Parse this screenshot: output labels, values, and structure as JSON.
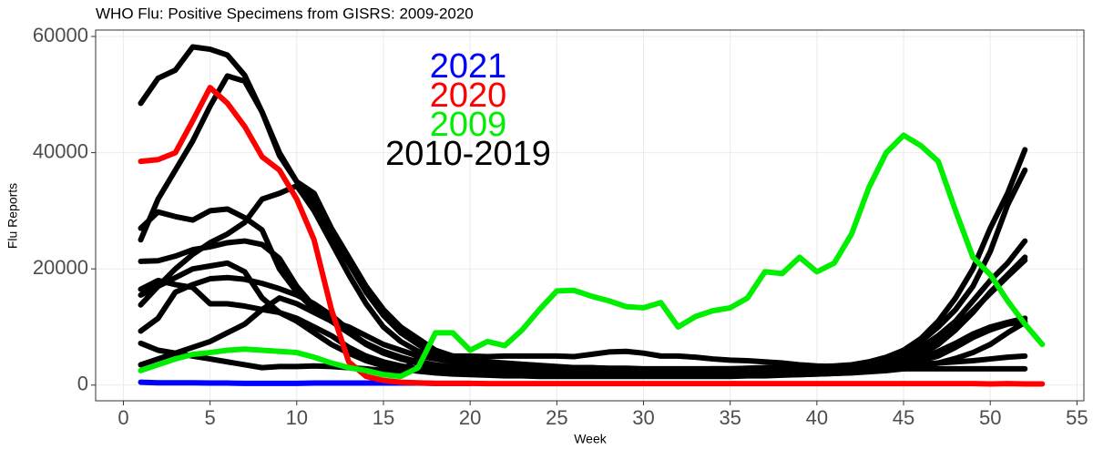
{
  "chart_data": {
    "type": "line",
    "title": "WHO Flu: Positive Specimens from GISRS: 2009-2020",
    "xlabel": "Week",
    "ylabel": "Flu Reports",
    "xlim": [
      -1.6,
      55.4
    ],
    "ylim": [
      -2700,
      61100
    ],
    "xticks": [
      0,
      5,
      10,
      15,
      20,
      25,
      30,
      35,
      40,
      45,
      50,
      55
    ],
    "yticks": [
      0,
      20000,
      40000,
      60000
    ],
    "grid": true,
    "series": [
      {
        "name": "2021",
        "color": "#0000ff",
        "x": [
          1,
          2,
          3,
          4,
          5,
          6,
          7,
          8,
          9,
          10,
          11,
          12,
          13,
          14,
          15,
          16,
          17,
          18,
          19,
          20
        ],
        "values": [
          500,
          400,
          400,
          400,
          350,
          350,
          300,
          300,
          300,
          300,
          350,
          350,
          350,
          350,
          350,
          350,
          350,
          300,
          300,
          300
        ]
      },
      {
        "name": "2020",
        "color": "#ff0000",
        "x": [
          1,
          2,
          3,
          4,
          5,
          6,
          7,
          8,
          9,
          10,
          11,
          12,
          13,
          14,
          15,
          16,
          17,
          18,
          19,
          20,
          21,
          22,
          23,
          24,
          25,
          26,
          27,
          28,
          29,
          30,
          31,
          32,
          33,
          34,
          35,
          36,
          37,
          38,
          39,
          40,
          41,
          42,
          43,
          44,
          45,
          46,
          47,
          48,
          49,
          50,
          51,
          52,
          53
        ],
        "values": [
          38500,
          38800,
          40000,
          45500,
          51200,
          48500,
          44500,
          39300,
          37000,
          32000,
          25000,
          13000,
          4000,
          1500,
          800,
          500,
          400,
          300,
          300,
          300,
          250,
          250,
          250,
          250,
          250,
          250,
          250,
          250,
          250,
          250,
          250,
          250,
          250,
          250,
          250,
          250,
          250,
          250,
          250,
          250,
          250,
          250,
          250,
          250,
          250,
          250,
          250,
          250,
          250,
          200,
          250,
          200,
          200
        ]
      },
      {
        "name": "2009",
        "color": "#00ee00",
        "x": [
          1,
          2,
          3,
          4,
          5,
          6,
          7,
          8,
          9,
          10,
          11,
          12,
          13,
          14,
          15,
          16,
          17,
          18,
          19,
          20,
          21,
          22,
          23,
          24,
          25,
          26,
          27,
          28,
          29,
          30,
          31,
          32,
          33,
          34,
          35,
          36,
          37,
          38,
          39,
          40,
          41,
          42,
          43,
          44,
          45,
          46,
          47,
          48,
          49,
          50,
          51,
          52,
          53
        ],
        "values": [
          2500,
          3500,
          4500,
          5300,
          5600,
          6000,
          6200,
          6000,
          5800,
          5600,
          4800,
          3800,
          3000,
          2500,
          1800,
          1500,
          3000,
          9000,
          9000,
          6000,
          7500,
          6800,
          9500,
          13000,
          16200,
          16300,
          15300,
          14500,
          13500,
          13300,
          14200,
          10000,
          11800,
          12800,
          13300,
          15000,
          19500,
          19200,
          22000,
          19500,
          21000,
          26000,
          34000,
          40000,
          43000,
          41200,
          38500,
          30000,
          22000,
          19000,
          14500,
          10500,
          7000
        ]
      },
      {
        "name": "2010-2019",
        "color": "#000000",
        "x": [
          1,
          2,
          3,
          4,
          5,
          6,
          7,
          8,
          9,
          10,
          11,
          12,
          13,
          14,
          15,
          16,
          17,
          18,
          19,
          20,
          21,
          22,
          23,
          24,
          25,
          26,
          27,
          28,
          29,
          30,
          31,
          32,
          33,
          34,
          35,
          36,
          37,
          38,
          39,
          40,
          41,
          42,
          43,
          44,
          45,
          46,
          47,
          48,
          49,
          50,
          51,
          52
        ],
        "lines": [
          [
            48500,
            52800,
            54200,
            58200,
            57800,
            56800,
            53300,
            47000,
            39500,
            35000,
            31500,
            26000,
            21000,
            16000,
            12000,
            9000,
            7000,
            5000,
            4000,
            3500,
            3200,
            3000,
            2800,
            2600,
            2500,
            2400,
            2300,
            2200,
            2100,
            2000,
            2000,
            2000,
            2000,
            2000,
            2100,
            2100,
            2200,
            2300,
            2400,
            2500,
            2700,
            3000,
            3500,
            4500,
            6000,
            8000,
            11000,
            15000,
            20000,
            27000,
            33000,
            40500
          ],
          [
            25000,
            32000,
            37000,
            42000,
            48000,
            53200,
            52300,
            47000,
            40000,
            35000,
            33000,
            27000,
            22000,
            17000,
            13000,
            10000,
            8000,
            6000,
            5000,
            4500,
            4000,
            3800,
            3600,
            3400,
            3200,
            3000,
            3000,
            2800,
            2800,
            2700,
            2700,
            2700,
            2700,
            2800,
            2800,
            2900,
            3000,
            3000,
            3100,
            3200,
            3300,
            3500,
            4000,
            4800,
            6000,
            7500,
            10000,
            13000,
            17000,
            23000,
            31000,
            37000
          ],
          [
            13800,
            17000,
            20000,
            22500,
            24500,
            26000,
            28000,
            32000,
            33000,
            34300,
            30000,
            24500,
            19000,
            14000,
            10000,
            7500,
            5800,
            4800,
            4300,
            4000,
            3800,
            3600,
            3400,
            3200,
            3000,
            2900,
            2800,
            2700,
            2600,
            2500,
            2500,
            2400,
            2400,
            2400,
            2400,
            2500,
            2500,
            2600,
            2700,
            2800,
            3000,
            3200,
            3500,
            4000,
            5000,
            6500,
            8500,
            11000,
            14500,
            18000,
            21000,
            24800
          ],
          [
            27000,
            29800,
            29000,
            28400,
            30000,
            30300,
            28800,
            26700,
            20000,
            16000,
            13000,
            11000,
            9000,
            7000,
            5500,
            4500,
            3800,
            3200,
            2800,
            2600,
            2400,
            2300,
            2200,
            2100,
            2000,
            2000,
            1900,
            1900,
            1800,
            1800,
            1800,
            1800,
            1800,
            1800,
            1800,
            1900,
            1900,
            2000,
            2000,
            2100,
            2200,
            2400,
            2700,
            3200,
            4000,
            5200,
            7000,
            9500,
            12500,
            16000,
            19000,
            22000
          ],
          [
            21300,
            21400,
            22200,
            23300,
            23800,
            24500,
            24800,
            24200,
            21800,
            17000,
            13500,
            11000,
            9000,
            7200,
            5800,
            4800,
            4000,
            3500,
            3100,
            2800,
            2600,
            2400,
            2300,
            2200,
            2100,
            2000,
            2000,
            2000,
            1900,
            1900,
            1900,
            1900,
            1900,
            1900,
            2000,
            2000,
            2000,
            2100,
            2200,
            2300,
            2500,
            2800,
            3200,
            3800,
            4700,
            6000,
            7800,
            10000,
            12800,
            15800,
            18700,
            21500
          ],
          [
            15500,
            17000,
            18500,
            20000,
            20500,
            21000,
            19500,
            15000,
            12500,
            11000,
            9000,
            7000,
            5500,
            4200,
            3300,
            2800,
            2400,
            2100,
            1900,
            1800,
            1700,
            1600,
            1600,
            1500,
            1500,
            1500,
            1500,
            1500,
            1500,
            1500,
            1500,
            1500,
            1500,
            1500,
            1500,
            1600,
            1600,
            1700,
            1800,
            1900,
            2000,
            2200,
            2500,
            3000,
            3600,
            4500,
            5800,
            7200,
            8800,
            10000,
            10800,
            11500
          ],
          [
            9300,
            11500,
            16000,
            17300,
            18300,
            18500,
            18200,
            17500,
            16600,
            15500,
            14000,
            12000,
            9500,
            7000,
            5500,
            4500,
            3800,
            3200,
            2800,
            2600,
            2400,
            2200,
            2100,
            2000,
            2000,
            1900,
            1900,
            1800,
            1800,
            1800,
            1800,
            1800,
            1800,
            1800,
            1800,
            1900,
            1900,
            2000,
            2000,
            2100,
            2200,
            2400,
            2600,
            3000,
            3500,
            4200,
            5000,
            6500,
            8200,
            9500,
            10500,
            11000
          ],
          [
            16500,
            18000,
            17300,
            16800,
            14000,
            14000,
            13600,
            13000,
            12500,
            11500,
            10000,
            8500,
            6500,
            5000,
            4000,
            3300,
            2800,
            2500,
            2300,
            2100,
            2000,
            1900,
            1800,
            1800,
            1700,
            1700,
            1700,
            1600,
            1600,
            1600,
            1600,
            1600,
            1600,
            1600,
            1600,
            1700,
            1700,
            1800,
            1800,
            1900,
            2000,
            2100,
            2300,
            2500,
            2800,
            3200,
            3800,
            4600,
            5600,
            7000,
            9000,
            10800
          ],
          [
            7200,
            6000,
            5500,
            5000,
            4500,
            4000,
            3500,
            3000,
            3200,
            3200,
            3300,
            3200,
            3000,
            2800,
            2500,
            2200,
            4800,
            5200,
            5000,
            5000,
            4900,
            5000,
            5000,
            5000,
            5000,
            4900,
            5300,
            5700,
            5800,
            5500,
            5000,
            5000,
            4800,
            4500,
            4300,
            4200,
            4000,
            3800,
            3500,
            3300,
            3200,
            3200,
            3300,
            3400,
            3500,
            3600,
            3800,
            4000,
            4200,
            4500,
            4800,
            5000
          ],
          [
            3500,
            4500,
            5500,
            6500,
            7500,
            9000,
            10500,
            13000,
            15000,
            14000,
            12500,
            11000,
            10000,
            8500,
            7000,
            6000,
            5000,
            4500,
            4000,
            3800,
            3500,
            3400,
            3300,
            3200,
            3100,
            3000,
            3000,
            2900,
            2900,
            2800,
            2800,
            2800,
            2800,
            2800,
            2800,
            2800,
            2800,
            2800,
            2800,
            2800,
            2800,
            2800,
            2800,
            2800,
            2800,
            2800,
            2800,
            2800,
            2800,
            2800,
            2800,
            2800
          ]
        ]
      }
    ]
  }
}
